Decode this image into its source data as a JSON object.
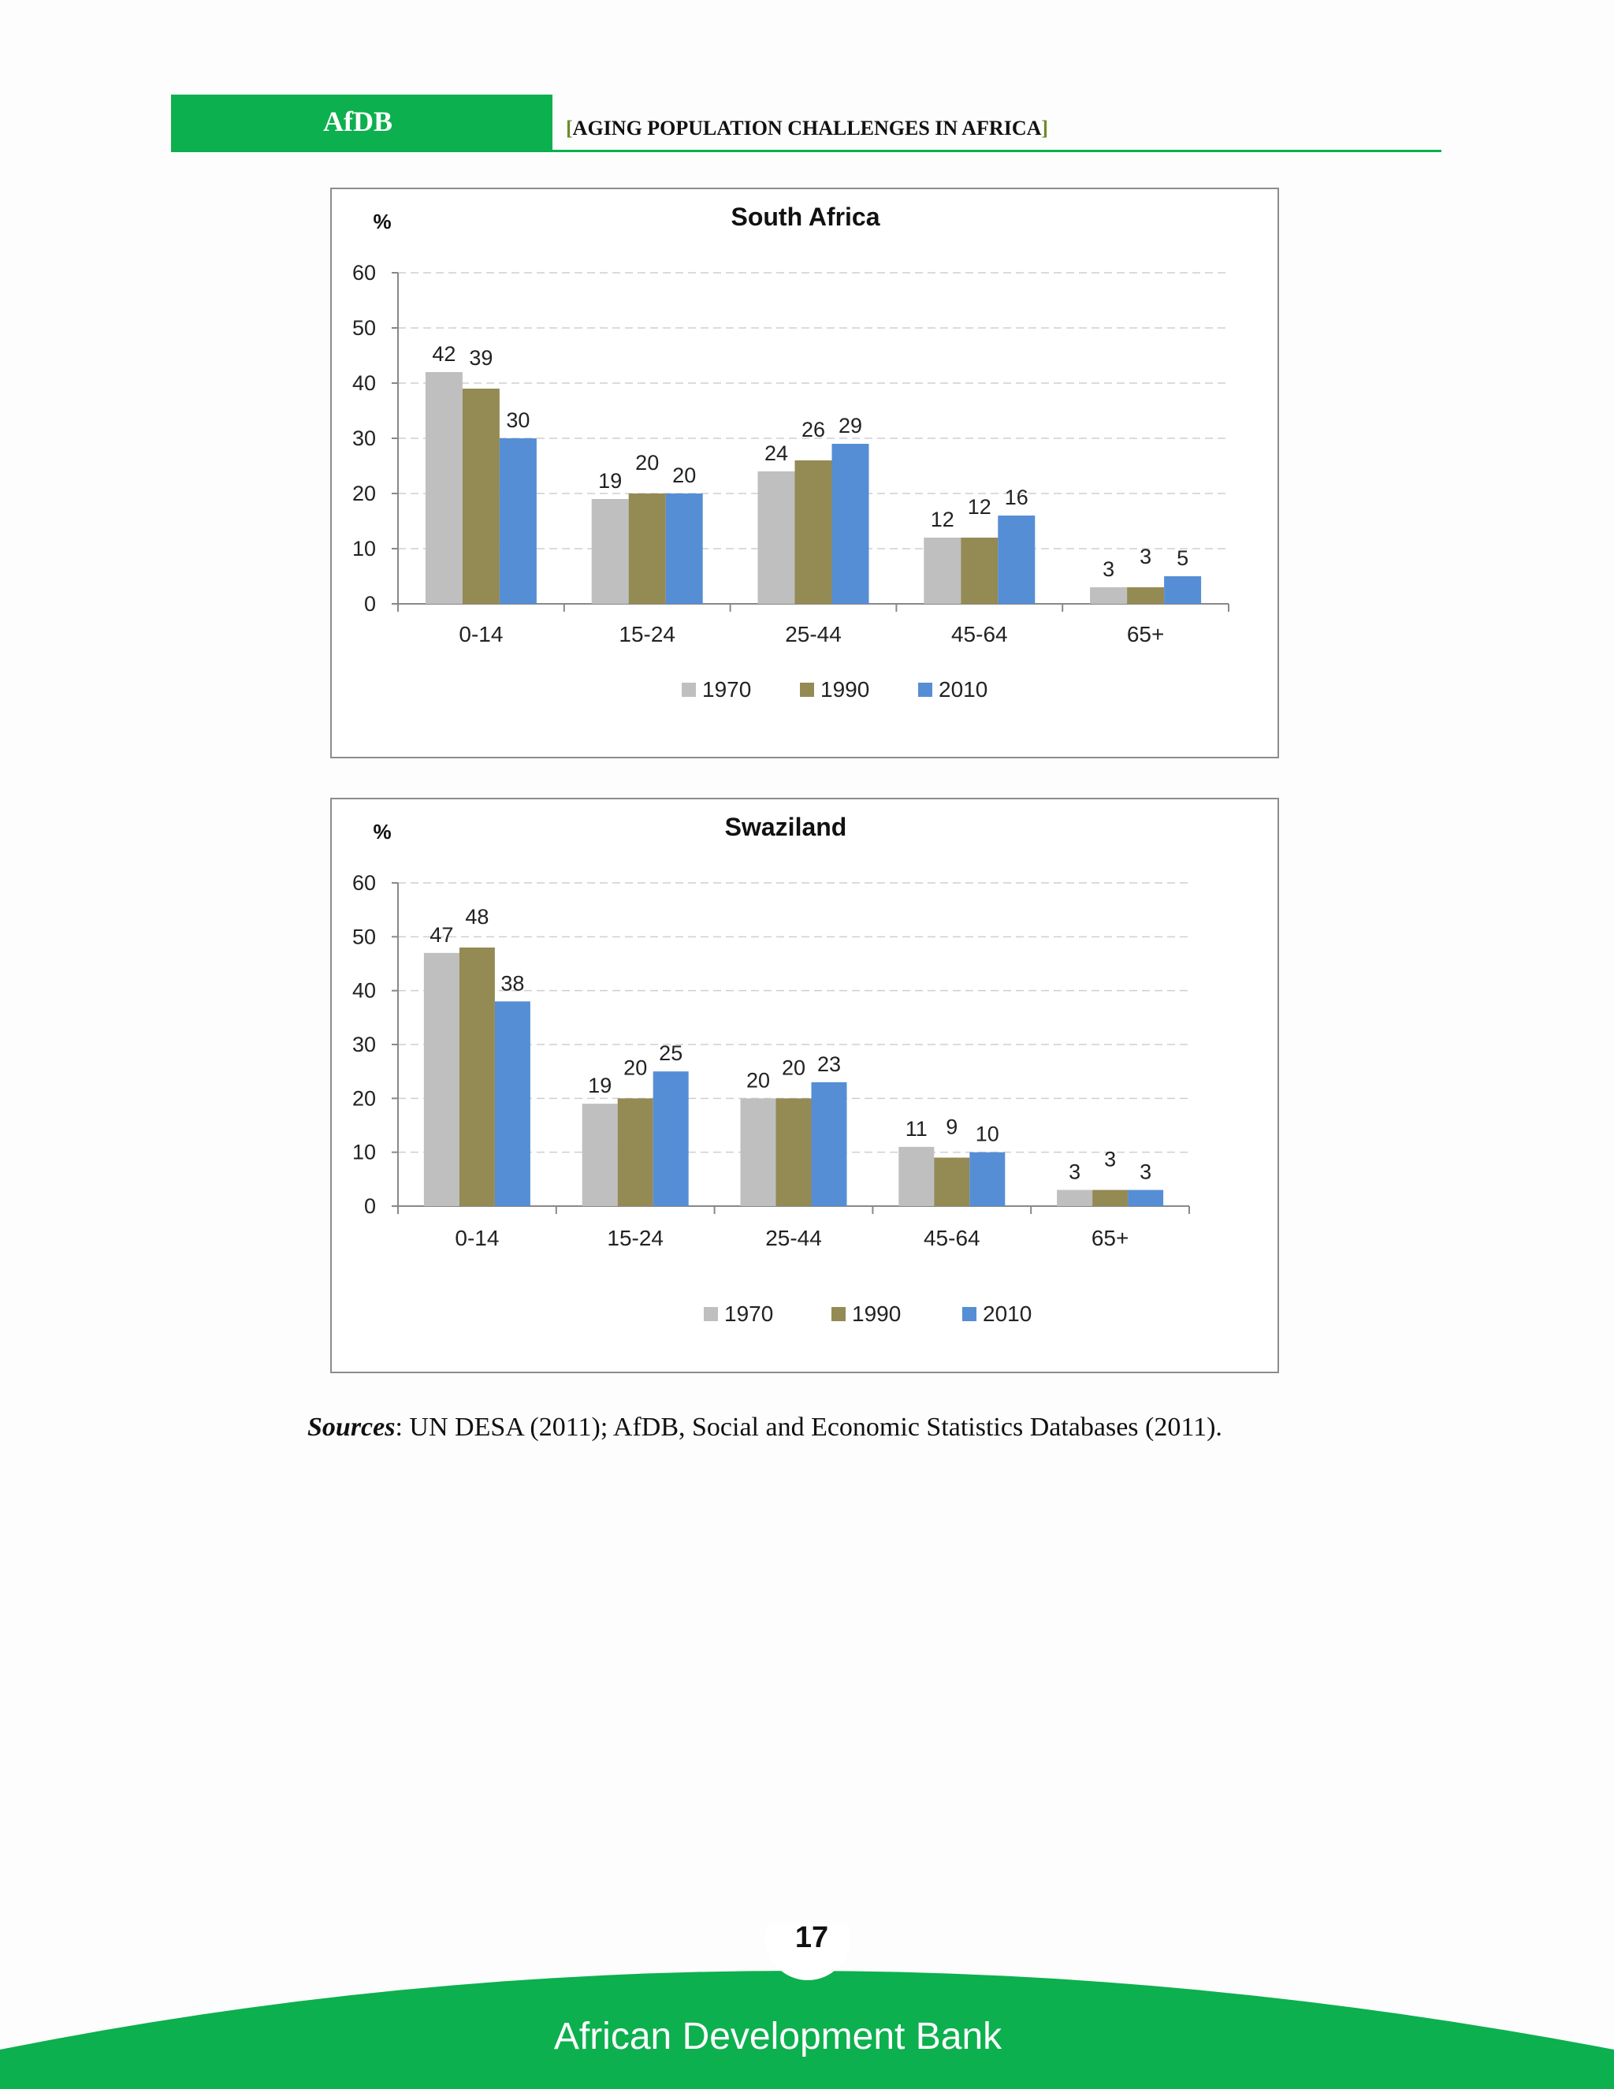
{
  "header": {
    "brand": "AfDB",
    "title_open": "[",
    "title": "AGING POPULATION CHALLENGES IN AFRICA",
    "title_close": "]"
  },
  "colors": {
    "brand_green": "#0cb04e",
    "series_1970": "#bfbfbf",
    "series_1990": "#948a54",
    "series_2010": "#558ed5"
  },
  "chart_data": [
    {
      "type": "bar",
      "title": "South Africa",
      "ylabel": "%",
      "ylim": [
        0,
        60
      ],
      "yticks": [
        0,
        10,
        20,
        30,
        40,
        50,
        60
      ],
      "grid": true,
      "legend": "bottom",
      "categories": [
        "0-14",
        "15-24",
        "25-44",
        "45-64",
        "65+"
      ],
      "series": [
        {
          "name": "1970",
          "values": [
            42,
            19,
            24,
            12,
            3
          ]
        },
        {
          "name": "1990",
          "values": [
            39,
            20,
            26,
            12,
            3
          ]
        },
        {
          "name": "2010",
          "values": [
            30,
            20,
            29,
            16,
            5
          ]
        }
      ]
    },
    {
      "type": "bar",
      "title": "Swaziland",
      "ylabel": "%",
      "ylim": [
        0,
        60
      ],
      "yticks": [
        0,
        10,
        20,
        30,
        40,
        50,
        60
      ],
      "grid": true,
      "legend": "bottom",
      "categories": [
        "0-14",
        "15-24",
        "25-44",
        "45-64",
        "65+"
      ],
      "series": [
        {
          "name": "1970",
          "values": [
            47,
            19,
            20,
            11,
            3
          ]
        },
        {
          "name": "1990",
          "values": [
            48,
            20,
            20,
            9,
            3
          ]
        },
        {
          "name": "2010",
          "values": [
            38,
            25,
            23,
            10,
            3
          ]
        }
      ]
    }
  ],
  "sources": {
    "label": "Sources",
    "text": ": UN DESA (2011); AfDB, Social and Economic Statistics Databases (2011)."
  },
  "footer": {
    "page_number": "17",
    "org": "African Development Bank"
  }
}
